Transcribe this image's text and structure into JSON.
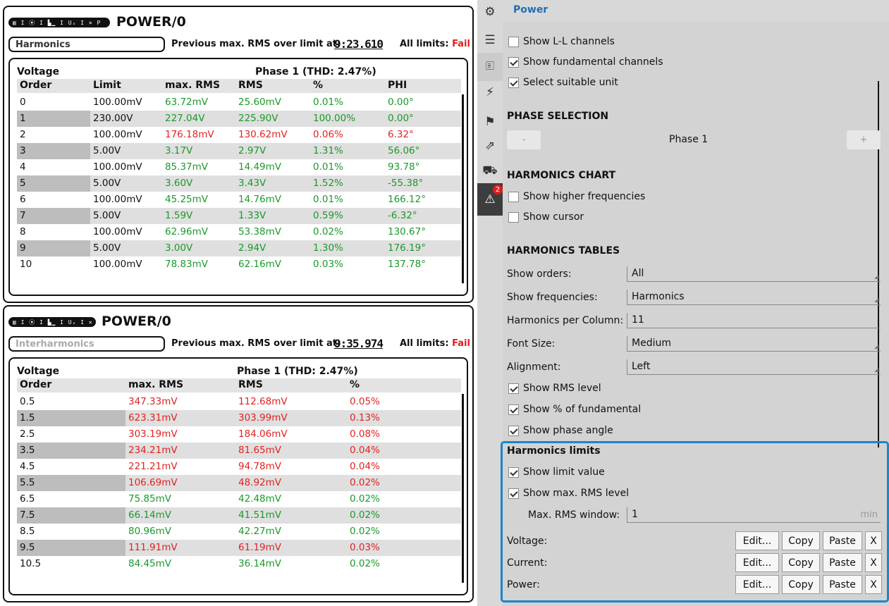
{
  "widget1": {
    "chips": [
      "▥ I ⦿ I ▙▁ I Uₓ I ⨯ P",
      ""
    ],
    "title": "POWER/0",
    "mode": "Harmonics",
    "prev_label": "Previous max. RMS over limit at:",
    "prev_time": "9:23.610",
    "limits_label": "All limits:",
    "limits_value": "Fail",
    "quantity": "Voltage",
    "phase": "Phase 1 (THD: 2.47%)",
    "headers": [
      "Order",
      "Limit",
      "max. RMS",
      "RMS",
      "%",
      "PHI"
    ],
    "rows": [
      [
        "0",
        "100.00mV",
        "63.72mV",
        "25.60mV",
        "0.01%",
        "0.00°"
      ],
      [
        "1",
        "230.00V",
        "227.04V",
        "225.90V",
        "100.00%",
        "0.00°"
      ],
      [
        "2",
        "100.00mV",
        "176.18mV",
        "130.62mV",
        "0.06%",
        "6.32°"
      ],
      [
        "3",
        "5.00V",
        "3.17V",
        "2.97V",
        "1.31%",
        "56.06°"
      ],
      [
        "4",
        "100.00mV",
        "85.37mV",
        "14.49mV",
        "0.01%",
        "93.78°"
      ],
      [
        "5",
        "5.00V",
        "3.60V",
        "3.43V",
        "1.52%",
        "-55.38°"
      ],
      [
        "6",
        "100.00mV",
        "45.25mV",
        "14.76mV",
        "0.01%",
        "166.12°"
      ],
      [
        "7",
        "5.00V",
        "1.59V",
        "1.33V",
        "0.59%",
        "-6.32°"
      ],
      [
        "8",
        "100.00mV",
        "62.96mV",
        "53.38mV",
        "0.02%",
        "130.67°"
      ],
      [
        "9",
        "5.00V",
        "3.00V",
        "2.94V",
        "1.30%",
        "176.19°"
      ],
      [
        "10",
        "100.00mV",
        "78.83mV",
        "62.16mV",
        "0.03%",
        "137.78°"
      ]
    ],
    "row_colors": [
      "green",
      "green",
      "red",
      "green",
      "green",
      "green",
      "green",
      "green",
      "green",
      "green",
      "green"
    ]
  },
  "widget2": {
    "chips": [
      "▥ I ⦿ I ▙▁ I Uₓ I ⨯",
      ""
    ],
    "title": "POWER/0",
    "mode": "Interharmonics",
    "prev_label": "Previous max. RMS over limit at:",
    "prev_time": "9:35.974",
    "limits_label": "All limits:",
    "limits_value": "Fail",
    "quantity": "Voltage",
    "phase": "Phase 1 (THD: 2.47%)",
    "headers": [
      "Order",
      "max. RMS",
      "RMS",
      "%"
    ],
    "rows": [
      [
        "0.5",
        "347.33mV",
        "112.68mV",
        "0.05%"
      ],
      [
        "1.5",
        "623.31mV",
        "303.99mV",
        "0.13%"
      ],
      [
        "2.5",
        "303.19mV",
        "184.06mV",
        "0.08%"
      ],
      [
        "3.5",
        "234.21mV",
        "81.65mV",
        "0.04%"
      ],
      [
        "4.5",
        "221.21mV",
        "94.78mV",
        "0.04%"
      ],
      [
        "5.5",
        "106.69mV",
        "48.92mV",
        "0.02%"
      ],
      [
        "6.5",
        "75.85mV",
        "42.48mV",
        "0.02%"
      ],
      [
        "7.5",
        "66.14mV",
        "41.51mV",
        "0.02%"
      ],
      [
        "8.5",
        "80.96mV",
        "42.27mV",
        "0.02%"
      ],
      [
        "9.5",
        "111.91mV",
        "61.19mV",
        "0.03%"
      ],
      [
        "10.5",
        "84.45mV",
        "36.14mV",
        "0.02%"
      ]
    ],
    "row_colors": [
      "red",
      "red",
      "red",
      "red",
      "red",
      "red",
      "green",
      "green",
      "green",
      "red",
      "green"
    ]
  },
  "sidebar": {
    "icons": [
      "gear-icon",
      "list-icon",
      "edit-properties-icon",
      "lightning-icon",
      "flag-icon",
      "export-icon",
      "car-icon",
      "warning-triangle-icon"
    ],
    "badge": "2"
  },
  "panel": {
    "title": "Power",
    "cb_ll": "Show L-L channels",
    "cb_fund": "Show fundamental channels",
    "cb_unit": "Select suitable unit",
    "phase_section": "PHASE SELECTION",
    "phase_minus": "-",
    "phase_value": "Phase 1",
    "phase_plus": "+",
    "chart_section": "HARMONICS CHART",
    "cb_higher": "Show higher frequencies",
    "cb_cursor": "Show cursor",
    "tables_section": "HARMONICS TABLES",
    "orders_label": "Show orders:",
    "orders_value": "All",
    "freq_label": "Show frequencies:",
    "freq_value": "Harmonics",
    "per_col_label": "Harmonics per Column:",
    "per_col_value": "11",
    "font_label": "Font Size:",
    "font_value": "Medium",
    "align_label": "Alignment:",
    "align_value": "Left",
    "cb_rms": "Show RMS level",
    "cb_pct": "Show % of fundamental",
    "cb_phase": "Show phase angle",
    "limits_section": "Harmonics limits",
    "cb_limit": "Show limit value",
    "cb_maxrms": "Show max. RMS level",
    "window_label": "Max. RMS window:",
    "window_value": "1",
    "window_unit": "min",
    "voltage_label": "Voltage:",
    "current_label": "Current:",
    "power_label": "Power:",
    "btn_edit": "Edit...",
    "btn_copy": "Copy",
    "btn_paste": "Paste",
    "btn_x": "X"
  },
  "colors": {
    "accent_blue": "#1b86c8",
    "title_blue": "#1d6fb8",
    "fail_red": "#e31b1b",
    "value_green": "#1a9a2a",
    "value_red": "#e22222"
  }
}
